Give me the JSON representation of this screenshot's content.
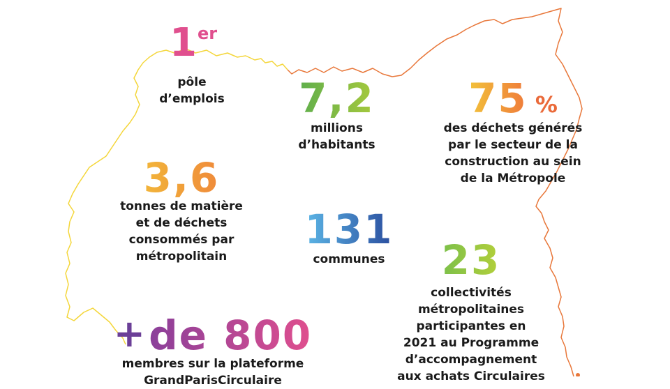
{
  "colors": {
    "border_yellow": "#f4d63a",
    "border_orange": "#e8773a",
    "pink": "#e04f8e",
    "green": "#8fc04a",
    "orange": "#f08a3a",
    "yellow": "#f2b53a",
    "blue": "#2a63b3",
    "purple": "#6b3f97"
  },
  "stats": {
    "employment": {
      "number": "1",
      "sup": "er",
      "caption": "pôle\nd’emplois"
    },
    "population": {
      "number": "7,2",
      "caption": "millions\nd’habitants"
    },
    "waste": {
      "number": "75",
      "unit": "%",
      "caption": "des déchets générés\npar le secteur de la\nconstruction au sein\nde la Métropole"
    },
    "matter": {
      "number": "3,6",
      "caption": "tonnes de matière\net de déchets\nconsommés par\nmétropolitain"
    },
    "communes": {
      "number": "131",
      "caption": "communes"
    },
    "collectivities": {
      "number": "23",
      "caption": "collectivités\nmétropolitaines\nparticipantes en\n2021 au Programme\nd’accompagnement\naux achats Circulaires"
    },
    "members": {
      "plus": "+",
      "number": "de 800",
      "caption": "membres sur la plateforme\nGrandParisCirculaire"
    }
  }
}
